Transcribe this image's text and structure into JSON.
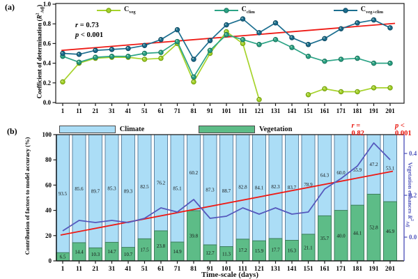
{
  "figure": {
    "panel_a_tag": "(a)",
    "panel_b_tag": "(b)",
    "x_axis_title": "Time-scale (days)"
  },
  "panel_a": {
    "y_axis_title": {
      "prefix": "Coefficient of determination (",
      "r_symbol": "R",
      "sup": "2",
      "sub": "Adj",
      "suffix": ")"
    },
    "annotation": {
      "sym1": "r",
      "rest1": " = 0.73",
      "sym2": "p",
      "rest2": " < 0.001"
    },
    "y_tick_labels": [
      "0.0",
      "0.2",
      "0.4",
      "0.6",
      "0.8",
      "1.0"
    ],
    "x_tick_labels": [
      "1",
      "11",
      "21",
      "31",
      "41",
      "51",
      "61",
      "71",
      "81",
      "91",
      "101",
      "111",
      "121",
      "131",
      "141",
      "151",
      "161",
      "171",
      "181",
      "191",
      "201"
    ]
  },
  "panel_b": {
    "left_axis_title": "Contribution of factors to model accuracy (%)",
    "right_axis_title": {
      "prefix": "Vegetation enhances ",
      "r_symbol": "R",
      "sup": "2",
      "sub": "Adj"
    },
    "annotation": {
      "sym1": "r",
      "rest1": " = 0.82",
      "sym2": "p",
      "rest2": " < 0.001"
    },
    "left_tick_labels": [
      "0",
      "20",
      "40",
      "60",
      "80",
      "100"
    ],
    "right_tick_labels": [
      "0.0",
      "0.2",
      "0.4"
    ],
    "x_tick_labels": [
      "1",
      "11",
      "21",
      "31",
      "41",
      "51",
      "61",
      "71",
      "81",
      "91",
      "101",
      "111",
      "121",
      "131",
      "141",
      "151",
      "161",
      "171",
      "181",
      "191",
      "201"
    ]
  },
  "chart_data": [
    {
      "panel": "a",
      "type": "line",
      "x": [
        1,
        11,
        21,
        31,
        41,
        51,
        61,
        71,
        81,
        91,
        101,
        111,
        121,
        131,
        141,
        151,
        161,
        171,
        181,
        191,
        201
      ],
      "ylim": [
        0.0,
        1.0
      ],
      "grid": false,
      "legend_position": "top-inside",
      "series": [
        {
          "name": "C_veg",
          "legend_main": "C",
          "legend_sub": "veg",
          "color": "#a6d32b",
          "edge_color": "#7aa512",
          "values": [
            0.21,
            0.4,
            0.45,
            0.46,
            0.46,
            0.44,
            0.45,
            0.6,
            0.21,
            0.5,
            0.72,
            0.6,
            0.03,
            null,
            null,
            0.08,
            0.14,
            0.11,
            0.11,
            0.15,
            0.15
          ]
        },
        {
          "name": "C_clim",
          "legend_main": "C",
          "legend_sub": "clim",
          "color": "#2ca486",
          "edge_color": "#1b7a62",
          "values": [
            0.47,
            0.41,
            0.46,
            0.47,
            0.47,
            0.5,
            0.51,
            0.62,
            0.26,
            0.53,
            0.69,
            0.64,
            0.59,
            0.64,
            0.56,
            0.47,
            0.42,
            0.44,
            0.45,
            0.4,
            0.4
          ]
        },
        {
          "name": "C_veg+clim",
          "legend_main": "C",
          "legend_sub": "veg+clim",
          "color": "#1c6f90",
          "edge_color": "#114f68",
          "values": [
            0.5,
            0.49,
            0.53,
            0.54,
            0.55,
            0.58,
            0.64,
            0.74,
            0.44,
            0.63,
            0.79,
            0.85,
            0.71,
            0.81,
            0.66,
            0.59,
            0.65,
            0.75,
            0.81,
            0.84,
            0.76
          ]
        }
      ],
      "trend_line": {
        "color": "#ee1a15",
        "x_start": 0.2,
        "v_start": 0.53,
        "x_end": 204,
        "v_end": 0.805
      },
      "correlation_r": 0.73,
      "p_value_text": "p < 0.001"
    },
    {
      "panel": "b",
      "type": "stacked-bar-line",
      "categories": [
        1,
        11,
        21,
        31,
        41,
        51,
        61,
        71,
        81,
        91,
        101,
        111,
        121,
        131,
        141,
        151,
        161,
        171,
        181,
        191,
        201
      ],
      "left_ylim": [
        0,
        100
      ],
      "right_axis_ticks": [
        0.0,
        0.2,
        0.4
      ],
      "series": [
        {
          "name": "Climate",
          "color": "#abddf6",
          "edge_color": "#5c82a0",
          "values": [
            93.5,
            85.6,
            89.7,
            85.3,
            89.3,
            82.5,
            76.2,
            85.1,
            60.2,
            87.3,
            88.7,
            82.8,
            84.1,
            82.3,
            83.7,
            78.9,
            64.3,
            60.0,
            55.9,
            47.2,
            53.1
          ]
        },
        {
          "name": "Vegetation",
          "color": "#5dbc87",
          "edge_color": "#3c7d5c",
          "values": [
            6.5,
            14.4,
            10.3,
            14.7,
            10.7,
            17.5,
            23.8,
            14.9,
            39.8,
            12.7,
            11.3,
            17.2,
            15.9,
            17.7,
            16.3,
            21.1,
            35.7,
            40.0,
            44.1,
            52.8,
            46.9
          ]
        }
      ],
      "line_series": {
        "name": "Vegetation enhances R2Adj",
        "axis": "right",
        "color": "#5559bd",
        "values": [
          0.03,
          0.08,
          0.07,
          0.08,
          0.07,
          0.09,
          0.14,
          0.12,
          0.18,
          0.09,
          0.1,
          0.14,
          0.11,
          0.14,
          0.11,
          0.12,
          0.23,
          0.28,
          0.34,
          0.45,
          0.37
        ]
      },
      "trend_line": {
        "color": "#ee1a15",
        "v_start": 0.01,
        "v_end": 0.315
      },
      "correlation_r": 0.82,
      "p_value_text": "p < 0.001",
      "axis_colors": {
        "left": "#1a1a1a",
        "right": "#5559bd"
      }
    }
  ]
}
